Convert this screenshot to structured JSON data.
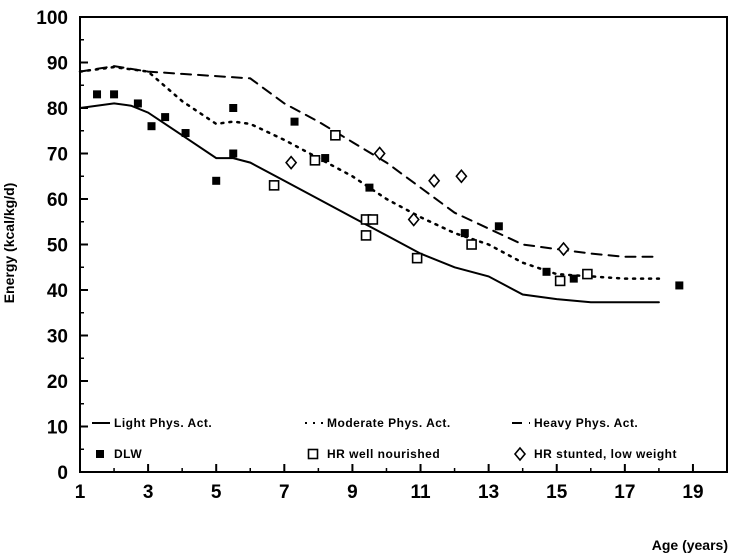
{
  "chart_data": {
    "type": "line",
    "title": "",
    "xlabel": "Age (years)",
    "ylabel": "Energy (kcal/kg/d)",
    "xlim": [
      1,
      20
    ],
    "ylim": [
      0,
      100
    ],
    "x_ticks": [
      1,
      3,
      5,
      7,
      9,
      11,
      13,
      15,
      17,
      19
    ],
    "y_ticks": [
      0,
      10,
      20,
      30,
      40,
      50,
      60,
      70,
      80,
      90,
      100
    ],
    "grid": false,
    "legend_position": "bottom-inside",
    "series": [
      {
        "name": "Light Phys. Act.",
        "kind": "line",
        "style": "solid",
        "points": [
          [
            1,
            80
          ],
          [
            2,
            81
          ],
          [
            2.5,
            80.5
          ],
          [
            3,
            79
          ],
          [
            4,
            74
          ],
          [
            5,
            69
          ],
          [
            5.5,
            69
          ],
          [
            6,
            68
          ],
          [
            7,
            64
          ],
          [
            8,
            60
          ],
          [
            9,
            56
          ],
          [
            10,
            52
          ],
          [
            11,
            48
          ],
          [
            12,
            45
          ],
          [
            13,
            43
          ],
          [
            14,
            39
          ],
          [
            15,
            38
          ],
          [
            16,
            37.3
          ],
          [
            17,
            37.3
          ],
          [
            18,
            37.3
          ]
        ]
      },
      {
        "name": "Moderate Phys. Act.",
        "kind": "line",
        "style": "dotted",
        "points": [
          [
            1,
            88
          ],
          [
            2,
            89
          ],
          [
            3,
            88
          ],
          [
            4,
            81.5
          ],
          [
            5,
            76.5
          ],
          [
            5.5,
            77
          ],
          [
            6,
            76.5
          ],
          [
            7,
            73
          ],
          [
            8,
            69
          ],
          [
            9,
            65
          ],
          [
            10,
            60
          ],
          [
            11,
            56
          ],
          [
            12,
            52.5
          ],
          [
            13,
            50
          ],
          [
            14,
            46
          ],
          [
            15,
            43.5
          ],
          [
            16,
            43
          ],
          [
            17,
            42.5
          ],
          [
            18,
            42.5
          ]
        ]
      },
      {
        "name": "Heavy Phys. Act.",
        "kind": "line",
        "style": "dashed",
        "points": [
          [
            1,
            88
          ],
          [
            2,
            89.2
          ],
          [
            3,
            88
          ],
          [
            4,
            87.5
          ],
          [
            5,
            87
          ],
          [
            6,
            86.5
          ],
          [
            7,
            81
          ],
          [
            8,
            77
          ],
          [
            9,
            72.5
          ],
          [
            10,
            68
          ],
          [
            11,
            62.5
          ],
          [
            12,
            57
          ],
          [
            13,
            53.5
          ],
          [
            14,
            50
          ],
          [
            15,
            49
          ],
          [
            16,
            48
          ],
          [
            17,
            47.3
          ],
          [
            18,
            47.3
          ]
        ]
      },
      {
        "name": "DLW",
        "kind": "scatter",
        "marker": "filled-square",
        "points": [
          [
            1.5,
            83
          ],
          [
            2,
            83
          ],
          [
            2.7,
            81
          ],
          [
            3.1,
            76
          ],
          [
            3.5,
            78
          ],
          [
            4.1,
            74.5
          ],
          [
            5,
            64
          ],
          [
            5.5,
            80
          ],
          [
            5.5,
            70
          ],
          [
            7.3,
            77
          ],
          [
            8.2,
            69
          ],
          [
            9.5,
            62.5
          ],
          [
            12.3,
            52.5
          ],
          [
            13.3,
            54
          ],
          [
            14.7,
            44
          ],
          [
            15.5,
            42.5
          ],
          [
            18.6,
            41
          ]
        ]
      },
      {
        "name": "HR well nourished",
        "kind": "scatter",
        "marker": "open-square",
        "points": [
          [
            6.7,
            63
          ],
          [
            7.9,
            68.5
          ],
          [
            8.5,
            74
          ],
          [
            9.4,
            55.5
          ],
          [
            9.6,
            55.5
          ],
          [
            9.4,
            52
          ],
          [
            10.9,
            47
          ],
          [
            12.5,
            50
          ],
          [
            15.1,
            42
          ],
          [
            15.9,
            43.5
          ]
        ]
      },
      {
        "name": "HR stunted, low weight",
        "kind": "scatter",
        "marker": "open-diamond",
        "points": [
          [
            7.2,
            68
          ],
          [
            9.8,
            70
          ],
          [
            10.8,
            55.5
          ],
          [
            11.4,
            64
          ],
          [
            12.2,
            65
          ],
          [
            15.2,
            49
          ]
        ]
      }
    ]
  }
}
